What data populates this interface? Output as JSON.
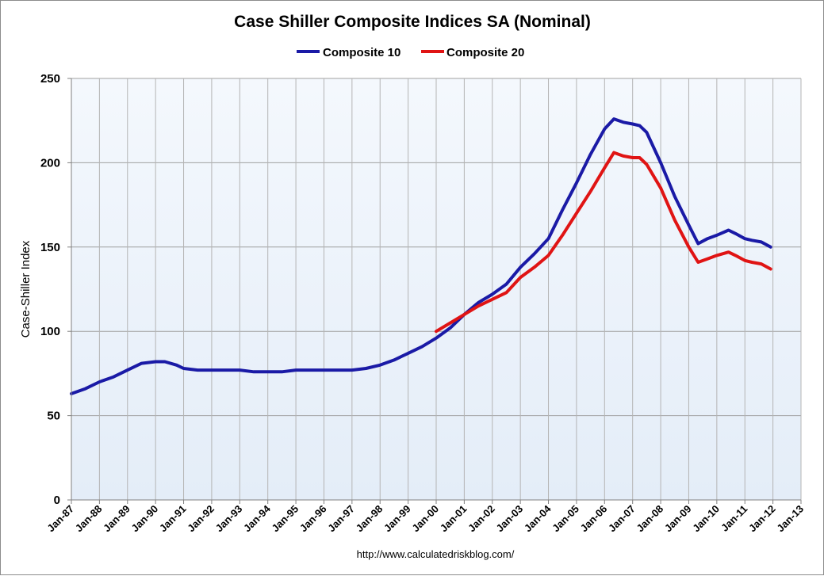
{
  "chart_data": {
    "type": "line",
    "title": "Case Shiller Composite Indices SA (Nominal)",
    "xlabel": "",
    "ylabel": "Case-Shiller Index",
    "source": "http://www.calculatedriskblog.com/",
    "ylim": [
      0,
      250
    ],
    "yticks": [
      "0",
      "50",
      "100",
      "150",
      "200",
      "250"
    ],
    "xticks": [
      "Jan-87",
      "Jan-88",
      "Jan-89",
      "Jan-90",
      "Jan-91",
      "Jan-92",
      "Jan-93",
      "Jan-94",
      "Jan-95",
      "Jan-96",
      "Jan-97",
      "Jan-98",
      "Jan-99",
      "Jan-00",
      "Jan-01",
      "Jan-02",
      "Jan-03",
      "Jan-04",
      "Jan-05",
      "Jan-06",
      "Jan-07",
      "Jan-08",
      "Jan-09",
      "Jan-10",
      "Jan-11",
      "Jan-12",
      "Jan-13"
    ],
    "grid": true,
    "legend_position": "top",
    "series": [
      {
        "name": "Composite 10",
        "color": "#1a1aa6",
        "points": [
          [
            "1987-01",
            63
          ],
          [
            "1987-07",
            66
          ],
          [
            "1988-01",
            70
          ],
          [
            "1988-07",
            73
          ],
          [
            "1989-01",
            77
          ],
          [
            "1989-07",
            81
          ],
          [
            "1990-01",
            82
          ],
          [
            "1990-05",
            82
          ],
          [
            "1990-10",
            80
          ],
          [
            "1991-01",
            78
          ],
          [
            "1991-07",
            77
          ],
          [
            "1992-01",
            77
          ],
          [
            "1992-07",
            77
          ],
          [
            "1993-01",
            77
          ],
          [
            "1993-07",
            76
          ],
          [
            "1994-01",
            76
          ],
          [
            "1994-07",
            76
          ],
          [
            "1995-01",
            77
          ],
          [
            "1995-07",
            77
          ],
          [
            "1996-01",
            77
          ],
          [
            "1996-07",
            77
          ],
          [
            "1997-01",
            77
          ],
          [
            "1997-07",
            78
          ],
          [
            "1998-01",
            80
          ],
          [
            "1998-07",
            83
          ],
          [
            "1999-01",
            87
          ],
          [
            "1999-07",
            91
          ],
          [
            "2000-01",
            96
          ],
          [
            "2000-07",
            102
          ],
          [
            "2001-01",
            110
          ],
          [
            "2001-07",
            117
          ],
          [
            "2002-01",
            122
          ],
          [
            "2002-07",
            128
          ],
          [
            "2003-01",
            138
          ],
          [
            "2003-07",
            146
          ],
          [
            "2004-01",
            155
          ],
          [
            "2004-07",
            172
          ],
          [
            "2005-01",
            188
          ],
          [
            "2005-07",
            205
          ],
          [
            "2006-01",
            220
          ],
          [
            "2006-05",
            226
          ],
          [
            "2006-09",
            224
          ],
          [
            "2007-01",
            223
          ],
          [
            "2007-04",
            222
          ],
          [
            "2007-07",
            218
          ],
          [
            "2008-01",
            200
          ],
          [
            "2008-07",
            180
          ],
          [
            "2009-01",
            163
          ],
          [
            "2009-05",
            152
          ],
          [
            "2009-09",
            155
          ],
          [
            "2010-01",
            157
          ],
          [
            "2010-06",
            160
          ],
          [
            "2010-09",
            158
          ],
          [
            "2011-01",
            155
          ],
          [
            "2011-04",
            154
          ],
          [
            "2011-08",
            153
          ],
          [
            "2011-12",
            150
          ]
        ]
      },
      {
        "name": "Composite 20",
        "color": "#e01414",
        "points": [
          [
            "2000-01",
            100
          ],
          [
            "2000-07",
            105
          ],
          [
            "2001-01",
            110
          ],
          [
            "2001-07",
            115
          ],
          [
            "2002-01",
            119
          ],
          [
            "2002-07",
            123
          ],
          [
            "2003-01",
            132
          ],
          [
            "2003-07",
            138
          ],
          [
            "2004-01",
            145
          ],
          [
            "2004-07",
            157
          ],
          [
            "2005-01",
            170
          ],
          [
            "2005-07",
            183
          ],
          [
            "2006-01",
            197
          ],
          [
            "2006-05",
            206
          ],
          [
            "2006-09",
            204
          ],
          [
            "2007-01",
            203
          ],
          [
            "2007-04",
            203
          ],
          [
            "2007-07",
            199
          ],
          [
            "2008-01",
            185
          ],
          [
            "2008-07",
            166
          ],
          [
            "2009-01",
            150
          ],
          [
            "2009-05",
            141
          ],
          [
            "2009-09",
            143
          ],
          [
            "2010-01",
            145
          ],
          [
            "2010-06",
            147
          ],
          [
            "2010-09",
            145
          ],
          [
            "2011-01",
            142
          ],
          [
            "2011-04",
            141
          ],
          [
            "2011-08",
            140
          ],
          [
            "2011-12",
            137
          ]
        ]
      }
    ]
  }
}
